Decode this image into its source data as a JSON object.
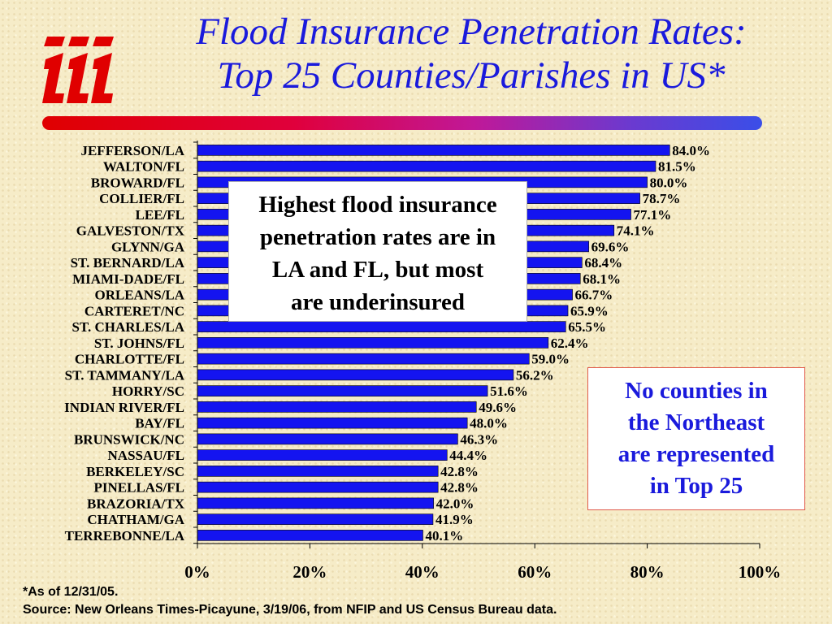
{
  "title_lines": [
    "Flood Insurance Penetration Rates:",
    "Top 25 Counties/Parishes in US*"
  ],
  "callouts": {
    "left_lines": [
      "Highest flood insurance",
      "penetration rates are in",
      "LA and FL, but most",
      "are underinsured"
    ],
    "right_lines": [
      "No counties in",
      "the Northeast",
      "are represented",
      "in Top 25"
    ]
  },
  "footnotes": {
    "as_of": "*As of 12/31/05.",
    "source": "Source: New Orleans Times-Picayune, 3/19/06, from NFIP and US Census Bureau data."
  },
  "colors": {
    "bar_fill": "#1414f0",
    "title": "#1a1adc",
    "logo": "#e00000"
  },
  "chart_data": {
    "type": "bar",
    "orientation": "horizontal",
    "title": "Flood Insurance Penetration Rates: Top 25 Counties/Parishes in US*",
    "categories": [
      "JEFFERSON/LA",
      "WALTON/FL",
      "BROWARD/FL",
      "COLLIER/FL",
      "LEE/FL",
      "GALVESTON/TX",
      "GLYNN/GA",
      "ST. BERNARD/LA",
      "MIAMI-DADE/FL",
      "ORLEANS/LA",
      "CARTERET/NC",
      "ST. CHARLES/LA",
      "ST. JOHNS/FL",
      "CHARLOTTE/FL",
      "ST. TAMMANY/LA",
      "HORRY/SC",
      "INDIAN RIVER/FL",
      "BAY/FL",
      "BRUNSWICK/NC",
      "NASSAU/FL",
      "BERKELEY/SC",
      "PINELLAS/FL",
      "BRAZORIA/TX",
      "CHATHAM/GA",
      "TERREBONNE/LA"
    ],
    "values": [
      84.0,
      81.5,
      80.0,
      78.7,
      77.1,
      74.1,
      69.6,
      68.4,
      68.1,
      66.7,
      65.9,
      65.5,
      62.4,
      59.0,
      56.2,
      51.6,
      49.6,
      48.0,
      46.3,
      44.4,
      42.8,
      42.8,
      42.0,
      41.9,
      40.1
    ],
    "value_labels": [
      "84.0%",
      "81.5%",
      "80.0%",
      "78.7%",
      "77.1%",
      "74.1%",
      "69.6%",
      "68.4%",
      "68.1%",
      "66.7%",
      "65.9%",
      "65.5%",
      "62.4%",
      "59.0%",
      "56.2%",
      "51.6%",
      "49.6%",
      "48.0%",
      "46.3%",
      "44.4%",
      "42.8%",
      "42.8%",
      "42.0%",
      "41.9%",
      "40.1%"
    ],
    "xlim": [
      0,
      100
    ],
    "xticks": [
      0,
      20,
      40,
      60,
      80,
      100
    ],
    "xtick_labels": [
      "0%",
      "20%",
      "40%",
      "60%",
      "80%",
      "100%"
    ],
    "xlabel": "",
    "ylabel": "",
    "grid": false,
    "legend": "none"
  }
}
